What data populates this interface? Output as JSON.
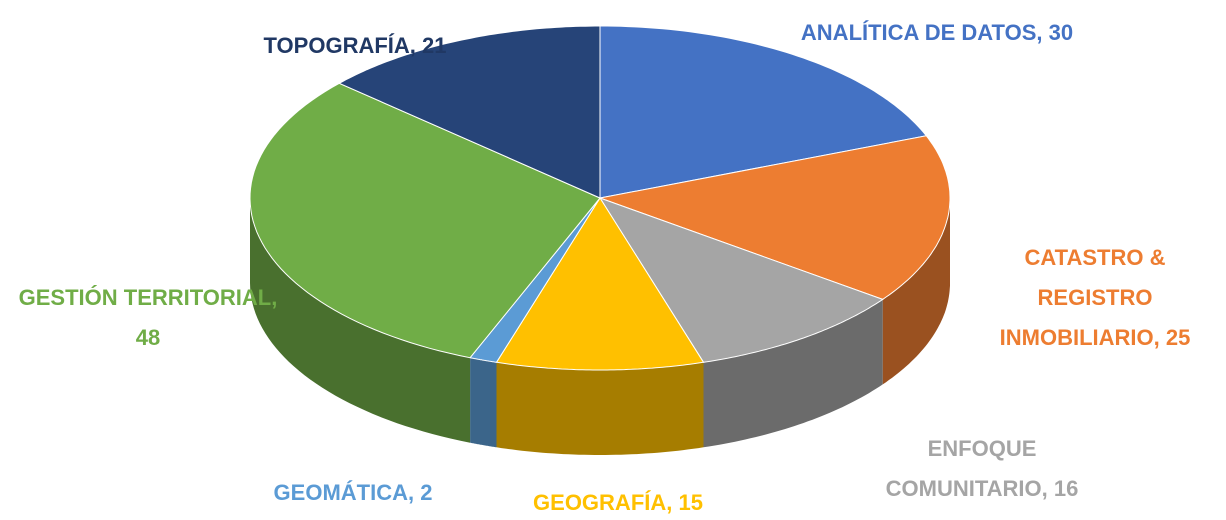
{
  "chart_data": {
    "type": "pie",
    "three_d": true,
    "values": [
      30,
      25,
      16,
      15,
      2,
      48,
      21
    ],
    "value_labels": [
      "ANALÍTICA DE DATOS, 30",
      "CATASTRO & REGISTRO INMOBILIARIO, 25",
      "ENFOQUE COMUNITARIO, 16",
      "GEOGRAFÍA, 15",
      "GEOMÁTICA, 2",
      "GESTIÓN TERRITORIAL, 48",
      "TOPOGRAFÍA, 21"
    ],
    "colors": [
      "#4472c4",
      "#ed7d31",
      "#a5a5a5",
      "#ffc000",
      "#5b9bd5",
      "#70ad47",
      "#264478"
    ],
    "label_colors": [
      "#4472c4",
      "#ed7d31",
      "#a5a5a5",
      "#ffc000",
      "#5b9bd5",
      "#70ad47",
      "#203864"
    ]
  }
}
